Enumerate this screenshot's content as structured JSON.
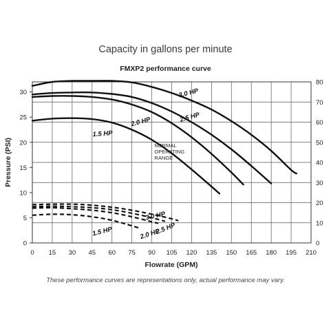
{
  "chart_data": {
    "type": "line",
    "title": "Capacity in gallons per minute",
    "subtitle": "FMXP2 performance curve",
    "xlabel": "Flowrate (GPM)",
    "ylabel": "Pressure (PSI)",
    "xlim": [
      0,
      210
    ],
    "ylim": [
      0,
      32
    ],
    "y2lim": [
      0,
      80
    ],
    "x_ticks": [
      "0",
      "15",
      "30",
      "45",
      "60",
      "75",
      "90",
      "105",
      "120",
      "135",
      "150",
      "165",
      "180",
      "195",
      "210"
    ],
    "y_ticks": [
      "0",
      "5",
      "10",
      "15",
      "20",
      "25",
      "30"
    ],
    "y2_ticks": [
      "0",
      "10",
      "20",
      "30",
      "40",
      "50",
      "60",
      "70",
      "80"
    ],
    "grid": true,
    "footnote": "These performance curves are representations only, actual performance may vary.",
    "annotation": [
      "NORMAL",
      "OPERATING",
      "RANGE"
    ],
    "series": [
      {
        "name": "3.0 HP",
        "style": "solid",
        "x": [
          0,
          15,
          30,
          45,
          60,
          75,
          90,
          105,
          120,
          135,
          150,
          165,
          180,
          195,
          199
        ],
        "y": [
          31.2,
          32.0,
          32.2,
          32.2,
          32.2,
          31.9,
          31.0,
          29.8,
          28.3,
          26.5,
          24.2,
          21.5,
          18.3,
          14.5,
          13.8
        ]
      },
      {
        "name": "2.5 HP",
        "style": "solid",
        "x": [
          0,
          15,
          30,
          45,
          60,
          75,
          90,
          105,
          120,
          135,
          150,
          165,
          180
        ],
        "y": [
          29.5,
          29.8,
          29.9,
          29.9,
          29.6,
          29.0,
          27.8,
          26.1,
          24.0,
          21.5,
          18.6,
          15.3,
          11.8
        ]
      },
      {
        "name": "2.0 HP",
        "style": "solid",
        "x": [
          0,
          15,
          30,
          45,
          60,
          75,
          90,
          105,
          120,
          135,
          150,
          159
        ],
        "y": [
          29.0,
          29.2,
          29.2,
          29.0,
          28.5,
          27.5,
          26.0,
          23.8,
          21.0,
          17.7,
          14.0,
          11.6
        ]
      },
      {
        "name": "1.5 HP",
        "style": "solid",
        "x": [
          0,
          15,
          30,
          45,
          60,
          75,
          90,
          105,
          120,
          135,
          141
        ],
        "y": [
          24.3,
          24.7,
          24.8,
          24.6,
          23.9,
          22.5,
          20.5,
          17.8,
          14.6,
          11.2,
          9.8
        ]
      },
      {
        "name": "3.0 HP",
        "style": "dashed",
        "x": [
          0,
          15,
          30,
          45,
          60,
          75,
          90,
          105,
          110
        ],
        "y": [
          7.6,
          7.7,
          7.7,
          7.5,
          7.1,
          6.5,
          5.7,
          4.8,
          4.4
        ]
      },
      {
        "name": "2.5 HP",
        "style": "dashed",
        "x": [
          0,
          15,
          30,
          45,
          60,
          75,
          90,
          100
        ],
        "y": [
          7.2,
          7.3,
          7.2,
          7.0,
          6.6,
          5.9,
          5.0,
          4.3
        ]
      },
      {
        "name": "2.0 HP",
        "style": "dashed",
        "x": [
          0,
          15,
          30,
          45,
          60,
          75,
          90,
          95
        ],
        "y": [
          6.9,
          7.0,
          6.8,
          6.5,
          6.0,
          5.2,
          4.2,
          3.9
        ]
      },
      {
        "name": "1.5 HP",
        "style": "dashed",
        "x": [
          0,
          15,
          30,
          45,
          60,
          75,
          80
        ],
        "y": [
          5.5,
          5.7,
          5.6,
          5.2,
          4.5,
          3.4,
          3.0
        ]
      }
    ],
    "curve_labels": [
      {
        "text": "3.0 HP",
        "x": 118,
        "y": 29.4,
        "angle": -14
      },
      {
        "text": "2.5 HP",
        "x": 119,
        "y": 24.6,
        "angle": -16
      },
      {
        "text": "2.0 HP",
        "x": 82,
        "y": 23.7,
        "angle": -15
      },
      {
        "text": "1.5 HP",
        "x": 53,
        "y": 21.3,
        "angle": -4
      },
      {
        "text": "3.0 HP",
        "x": 93,
        "y": 5.0,
        "angle": -12
      },
      {
        "text": "2.5 HP",
        "x": 101,
        "y": 2.5,
        "angle": -22
      },
      {
        "text": "2.0 HP",
        "x": 89,
        "y": 1.4,
        "angle": -18
      },
      {
        "text": "1.5 HP",
        "x": 53,
        "y": 1.9,
        "angle": -14
      }
    ]
  }
}
